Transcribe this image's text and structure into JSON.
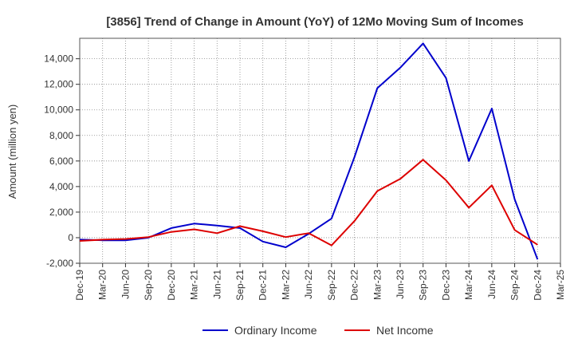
{
  "chart_data": {
    "type": "line",
    "title": "[3856]  Trend of Change in Amount (YoY) of 12Mo Moving Sum of Incomes",
    "xlabel": "",
    "ylabel": "Amount (million yen)",
    "categories": [
      "Dec-19",
      "Mar-20",
      "Jun-20",
      "Sep-20",
      "Dec-20",
      "Mar-21",
      "Jun-21",
      "Sep-21",
      "Dec-21",
      "Mar-22",
      "Jun-22",
      "Sep-22",
      "Dec-22",
      "Mar-23",
      "Jun-23",
      "Sep-23",
      "Dec-23",
      "Mar-24",
      "Jun-24",
      "Sep-24",
      "Dec-24",
      "Mar-25"
    ],
    "ylim": [
      -2000,
      15600
    ],
    "yticks": [
      -2000,
      0,
      2000,
      4000,
      6000,
      8000,
      10000,
      12000,
      14000
    ],
    "ytick_labels": [
      "-2,000",
      "0",
      "2,000",
      "4,000",
      "6,000",
      "8,000",
      "10,000",
      "12,000",
      "14,000"
    ],
    "grid": true,
    "legend_position": "bottom",
    "series": [
      {
        "name": "Ordinary Income",
        "color": "#0000cc",
        "values": [
          -150,
          -200,
          -200,
          0,
          750,
          1100,
          950,
          750,
          -300,
          -750,
          300,
          1500,
          6300,
          11700,
          13300,
          15200,
          12500,
          6000,
          10100,
          3000,
          -1700,
          null
        ]
      },
      {
        "name": "Net Income",
        "color": "#dd0000",
        "values": [
          -250,
          -150,
          -100,
          50,
          450,
          650,
          350,
          900,
          500,
          50,
          350,
          -600,
          1300,
          3650,
          4600,
          6100,
          4500,
          2350,
          4100,
          600,
          -550,
          null
        ]
      }
    ]
  }
}
